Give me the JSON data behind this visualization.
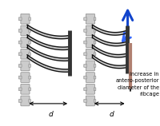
{
  "bg_color": "#ffffff",
  "spine_color": "#cccccc",
  "spine_outline": "#888888",
  "rib_fill_color": "#cccccc",
  "rib_line_color": "#111111",
  "bar_dark_color": "#333333",
  "bar_pink_color": "#b08070",
  "arrow_blue": "#1144cc",
  "arrow_blue2": "#3366ff",
  "label_d": "d",
  "text_label": "increase in\nantero-posterior\ndiameter of the\nribcage",
  "lsx": 0.155,
  "lbx": 0.435,
  "rsx": 0.565,
  "rbx": 0.795
}
